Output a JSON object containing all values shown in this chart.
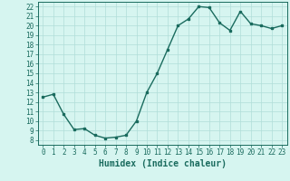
{
  "x": [
    0,
    1,
    2,
    3,
    4,
    5,
    6,
    7,
    8,
    9,
    10,
    11,
    12,
    13,
    14,
    15,
    16,
    17,
    18,
    19,
    20,
    21,
    22,
    23
  ],
  "y": [
    12.5,
    12.8,
    10.7,
    9.1,
    9.2,
    8.5,
    8.2,
    8.3,
    8.5,
    10.0,
    13.0,
    15.0,
    17.5,
    20.0,
    20.7,
    22.0,
    21.9,
    20.3,
    19.5,
    21.5,
    20.2,
    20.0,
    19.7,
    20.0
  ],
  "line_color": "#1a6b5e",
  "marker": "s",
  "markersize": 2,
  "linewidth": 1.0,
  "background_color": "#d6f5f0",
  "grid_color": "#b0ddd8",
  "xlabel": "Humidex (Indice chaleur)",
  "xlim": [
    -0.5,
    23.5
  ],
  "ylim": [
    7.5,
    22.5
  ],
  "yticks": [
    8,
    9,
    10,
    11,
    12,
    13,
    14,
    15,
    16,
    17,
    18,
    19,
    20,
    21,
    22
  ],
  "xticks": [
    0,
    1,
    2,
    3,
    4,
    5,
    6,
    7,
    8,
    9,
    10,
    11,
    12,
    13,
    14,
    15,
    16,
    17,
    18,
    19,
    20,
    21,
    22,
    23
  ],
  "xtick_labels": [
    "0",
    "1",
    "2",
    "3",
    "4",
    "5",
    "6",
    "7",
    "8",
    "9",
    "10",
    "11",
    "12",
    "13",
    "14",
    "15",
    "16",
    "17",
    "18",
    "19",
    "20",
    "21",
    "22",
    "23"
  ],
  "tick_color": "#1a6b5e",
  "label_color": "#1a6b5e",
  "axis_color": "#1a6b5e",
  "tick_fontsize": 5.5,
  "xlabel_fontsize": 7
}
